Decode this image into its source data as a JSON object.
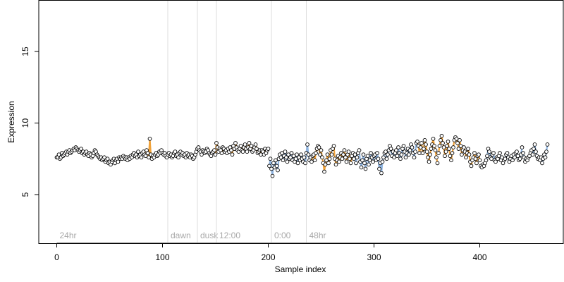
{
  "chart_data": {
    "type": "scatter",
    "xlabel": "Sample index",
    "ylabel": "Expression",
    "xlim": [
      -17,
      479
    ],
    "ylim": [
      1.6,
      18.6
    ],
    "x_ticks": [
      0,
      100,
      200,
      300,
      400
    ],
    "y_ticks": [
      5,
      10,
      15
    ],
    "grid": false,
    "colors": {
      "line_blue": "#8fb4e0",
      "line_orange": "#f0a23a",
      "region_line": "#dddddd",
      "region_text": "#a8a8a8",
      "point_edge": "#000000",
      "point_fill": "#ffffff"
    },
    "regions": [
      {
        "label": "24hr",
        "x": 0
      },
      {
        "label": "dawn",
        "x": 105
      },
      {
        "label": "dusk",
        "x": 133
      },
      {
        "label": "12:00",
        "x": 151
      },
      {
        "label": "0:00",
        "x": 203
      },
      {
        "label": "48hr",
        "x": 236
      }
    ],
    "segments": [
      {
        "x_start": 0,
        "x_end": 20,
        "color": "#8fb4e0",
        "y": [
          7.6,
          7.6,
          7.8,
          7.5,
          7.6,
          7.9,
          7.7,
          7.8,
          7.9,
          8.0,
          7.8,
          8.0,
          8.1,
          7.9,
          8.0,
          8.1,
          8.2,
          8.1,
          8.3,
          8.2,
          8.1
        ]
      },
      {
        "x_start": 21,
        "x_end": 40,
        "color": "#8fb4e0",
        "y": [
          8.0,
          8.1,
          8.2,
          7.9,
          8.0,
          7.8,
          7.9,
          8.0,
          7.8,
          7.7,
          7.9,
          7.8,
          7.6,
          7.7,
          7.9,
          8.1,
          8.0,
          7.8,
          7.7,
          7.6
        ]
      },
      {
        "x_start": 41,
        "x_end": 60,
        "color": "#8fb4e0",
        "y": [
          7.5,
          7.6,
          7.4,
          7.5,
          7.6,
          7.3,
          7.4,
          7.5,
          7.2,
          7.3,
          7.1,
          7.3,
          7.4,
          7.5,
          7.2,
          7.4,
          7.5,
          7.3,
          7.6,
          7.5
        ]
      },
      {
        "x_start": 61,
        "x_end": 80,
        "color": "#8fb4e0",
        "y": [
          7.6,
          7.5,
          7.7,
          7.6,
          7.5,
          7.6,
          7.4,
          7.6,
          7.5,
          7.7,
          7.6,
          7.8,
          7.9,
          7.7,
          7.8,
          7.6,
          8.0,
          7.7,
          7.8,
          7.6
        ]
      },
      {
        "x_start": 81,
        "x_end": 100,
        "color": "#f0a23a",
        "y": [
          7.9,
          8.0,
          7.8,
          7.7,
          8.1,
          7.9,
          7.6,
          8.9,
          7.8,
          7.5,
          7.7,
          7.6,
          7.8,
          7.9,
          7.7,
          7.8,
          8.0,
          7.9,
          8.1,
          7.9
        ]
      },
      {
        "x_start": 101,
        "x_end": 120,
        "color": "#8fb4e0",
        "y": [
          7.8,
          7.9,
          7.7,
          7.6,
          7.8,
          7.9,
          7.7,
          7.8,
          7.6,
          7.7,
          7.9,
          8.0,
          7.7,
          7.8,
          7.6,
          7.9,
          8.0,
          7.8,
          7.9,
          7.7
        ]
      },
      {
        "x_start": 121,
        "x_end": 140,
        "color": "#8fb4e0",
        "y": [
          7.8,
          7.6,
          7.9,
          7.7,
          7.8,
          7.6,
          7.8,
          7.7,
          7.5,
          7.6,
          7.8,
          8.0,
          8.2,
          8.3,
          8.1,
          8.0,
          7.8,
          8.1,
          8.0,
          7.9
        ]
      },
      {
        "x_start": 141,
        "x_end": 160,
        "color": "#f0a23a",
        "y": [
          8.0,
          8.2,
          8.1,
          7.9,
          7.8,
          7.7,
          7.9,
          8.0,
          8.1,
          7.8,
          8.6,
          8.3,
          8.0,
          8.2,
          8.1,
          7.9,
          8.3,
          8.2,
          8.0,
          8.1
        ]
      },
      {
        "x_start": 161,
        "x_end": 180,
        "color": "#f0a23a",
        "y": [
          7.9,
          8.2,
          8.0,
          8.3,
          8.1,
          7.8,
          8.4,
          8.2,
          8.6,
          8.3,
          8.1,
          8.0,
          8.2,
          8.4,
          8.1,
          8.0,
          8.3,
          8.5,
          8.2,
          8.0
        ]
      },
      {
        "x_start": 181,
        "x_end": 200,
        "color": "#f0a23a",
        "y": [
          8.3,
          8.6,
          8.2,
          8.4,
          8.0,
          8.1,
          8.3,
          8.5,
          8.2,
          7.9,
          8.0,
          8.1,
          7.8,
          8.1,
          8.0,
          7.8,
          8.2,
          7.9,
          8.1,
          8.2
        ]
      },
      {
        "x_start": 201,
        "x_end": 220,
        "color": "#8fb4e0",
        "y": [
          7.0,
          7.5,
          6.8,
          6.3,
          7.2,
          6.9,
          7.4,
          7.0,
          6.7,
          7.5,
          7.8,
          7.6,
          7.9,
          7.4,
          7.7,
          8.0,
          7.6,
          7.3,
          7.8,
          7.5
        ]
      },
      {
        "x_start": 221,
        "x_end": 240,
        "color": "#8fb4e0",
        "y": [
          7.6,
          7.9,
          7.4,
          7.7,
          7.3,
          7.5,
          7.8,
          7.2,
          7.6,
          7.4,
          7.8,
          7.5,
          7.3,
          7.6,
          7.2,
          7.9,
          8.5,
          7.8,
          7.4,
          7.6
        ]
      },
      {
        "x_start": 241,
        "x_end": 260,
        "color": "#f0a23a",
        "y": [
          7.3,
          7.7,
          7.8,
          7.4,
          7.9,
          8.2,
          8.4,
          8.3,
          7.8,
          8.1,
          7.6,
          7.2,
          6.6,
          7.1,
          7.4,
          7.8,
          7.2,
          7.5,
          8.1,
          7.8
        ]
      },
      {
        "x_start": 261,
        "x_end": 280,
        "color": "#f0a23a",
        "y": [
          8.2,
          8.4,
          7.5,
          7.1,
          7.4,
          7.7,
          7.3,
          7.6,
          7.9,
          7.5,
          7.8,
          8.1,
          7.6,
          7.3,
          7.8,
          8.0,
          7.5,
          7.2,
          7.7,
          7.9
        ]
      },
      {
        "x_start": 281,
        "x_end": 300,
        "color": "#8fb4e0",
        "y": [
          7.5,
          7.8,
          7.2,
          7.6,
          7.9,
          8.1,
          7.3,
          6.9,
          7.4,
          7.8,
          7.2,
          6.8,
          7.5,
          7.7,
          7.1,
          7.4,
          7.9,
          7.6,
          7.3,
          7.7
        ]
      },
      {
        "x_start": 301,
        "x_end": 320,
        "color": "#8fb4e0",
        "y": [
          7.8,
          7.4,
          7.9,
          7.5,
          6.8,
          7.2,
          6.5,
          7.3,
          7.6,
          7.9,
          8.0,
          7.5,
          7.8,
          8.1,
          8.4,
          8.2,
          7.7,
          8.0,
          7.6,
          7.9
        ]
      },
      {
        "x_start": 321,
        "x_end": 340,
        "color": "#8fb4e0",
        "y": [
          8.1,
          7.7,
          8.3,
          7.9,
          7.5,
          7.8,
          8.2,
          8.4,
          8.0,
          7.6,
          7.9,
          8.2,
          7.8,
          8.1,
          8.5,
          8.3,
          7.9,
          7.6,
          8.0,
          8.6
        ]
      },
      {
        "x_start": 341,
        "x_end": 360,
        "color": "#f0a23a",
        "y": [
          8.7,
          8.4,
          7.9,
          8.3,
          8.6,
          7.9,
          8.2,
          8.8,
          8.5,
          8.0,
          7.6,
          7.3,
          7.8,
          8.2,
          8.5,
          8.9,
          8.4,
          8.1,
          7.6,
          7.2
        ]
      },
      {
        "x_start": 361,
        "x_end": 380,
        "color": "#f0a23a",
        "y": [
          7.9,
          8.4,
          8.8,
          9.1,
          8.6,
          8.3,
          7.7,
          8.0,
          8.4,
          8.7,
          8.2,
          7.7,
          7.4,
          7.9,
          8.3,
          8.8,
          9.0,
          8.9,
          8.6,
          8.2
        ]
      },
      {
        "x_start": 381,
        "x_end": 400,
        "color": "#f0a23a",
        "y": [
          8.8,
          8.4,
          7.8,
          8.1,
          8.3,
          8.0,
          7.6,
          7.9,
          8.2,
          7.8,
          7.3,
          7.0,
          7.4,
          7.6,
          7.9,
          7.5,
          7.2,
          7.7,
          7.8,
          7.4
        ]
      },
      {
        "x_start": 401,
        "x_end": 420,
        "color": "#8fb4e0",
        "y": [
          7.0,
          6.9,
          7.1,
          7.0,
          7.2,
          7.4,
          7.7,
          8.2,
          8.0,
          7.6,
          7.5,
          7.8,
          7.9,
          7.4,
          7.3,
          7.6,
          7.5,
          7.7,
          7.9,
          7.4
        ]
      },
      {
        "x_start": 421,
        "x_end": 440,
        "color": "#8fb4e0",
        "y": [
          7.6,
          7.2,
          7.4,
          7.5,
          7.8,
          7.9,
          7.6,
          7.3,
          7.5,
          7.7,
          7.4,
          7.8,
          7.6,
          7.9,
          8.0,
          7.7,
          7.4,
          7.5,
          7.8,
          8.3
        ]
      },
      {
        "x_start": 441,
        "x_end": 464,
        "color": "#8fb4e0",
        "y": [
          7.9,
          7.6,
          7.3,
          7.5,
          7.4,
          7.6,
          7.7,
          7.9,
          8.1,
          7.8,
          8.2,
          8.5,
          8.0,
          7.7,
          7.5,
          7.6,
          7.4,
          7.6,
          7.2,
          7.5,
          7.8,
          7.6,
          8.0,
          8.5
        ]
      }
    ]
  }
}
